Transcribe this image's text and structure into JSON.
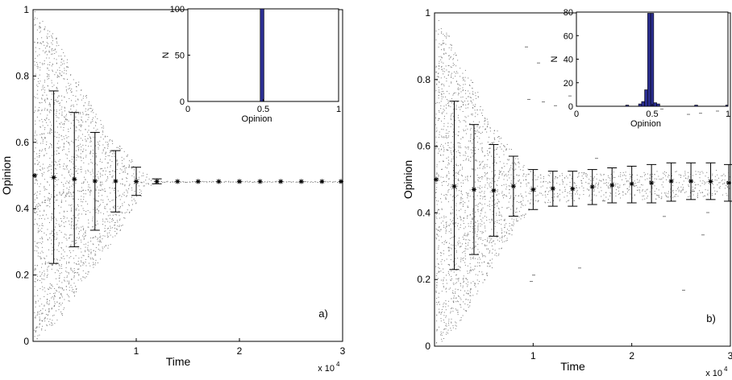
{
  "colors": {
    "axis": "#000000",
    "scatter": "#7a7a7a",
    "bar": "#2b2e91",
    "mean_marker": "#000000"
  },
  "chart_data": [
    {
      "type": "scatter",
      "xlabel": "Time",
      "ylabel": "Opinion",
      "x_multiplier_label": "x 10",
      "x_multiplier_exp": "4",
      "panel_label": "a)",
      "xlim": [
        0,
        3
      ],
      "ylim": [
        0,
        1
      ],
      "x_ticks": [
        1,
        2,
        3
      ],
      "y_ticks": [
        0,
        0.2,
        0.4,
        0.6,
        0.8,
        1
      ],
      "x_tick_labels": [
        "1",
        "2",
        "3"
      ],
      "y_tick_labels": [
        "0",
        "0.2",
        "0.4",
        "0.6",
        "0.8",
        "1"
      ],
      "grid": false,
      "mean_with_errorbars": {
        "x": [
          0.0,
          0.2,
          0.4,
          0.6,
          0.8,
          1.0,
          1.2,
          1.4,
          1.6,
          1.8,
          2.0,
          2.2,
          2.4,
          2.6,
          2.8,
          3.0
        ],
        "mean": [
          0.5,
          0.494,
          0.489,
          0.483,
          0.483,
          0.482,
          0.482,
          0.482,
          0.482,
          0.482,
          0.482,
          0.482,
          0.482,
          0.482,
          0.482,
          0.482
        ],
        "lower": [
          null,
          0.235,
          0.285,
          0.335,
          0.39,
          0.44,
          0.475,
          null,
          null,
          null,
          null,
          null,
          null,
          null,
          null,
          null
        ],
        "upper": [
          null,
          0.755,
          0.69,
          0.63,
          0.575,
          0.525,
          0.49,
          null,
          null,
          null,
          null,
          null,
          null,
          null,
          null,
          null
        ]
      },
      "opinion_spread": {
        "x": [
          0.0,
          0.2,
          0.4,
          0.6,
          0.8,
          1.0,
          1.1,
          1.2,
          3.0
        ],
        "min": [
          0.0,
          0.05,
          0.14,
          0.23,
          0.32,
          0.42,
          0.465,
          0.48,
          0.48
        ],
        "max": [
          1.0,
          0.93,
          0.8,
          0.685,
          0.6,
          0.535,
          0.5,
          0.484,
          0.484
        ]
      },
      "inset": {
        "type": "bar",
        "xlabel": "Opinion",
        "ylabel": "N",
        "xlim": [
          0,
          1
        ],
        "ylim": [
          0,
          100
        ],
        "x_ticks": [
          0,
          0.5,
          1
        ],
        "y_ticks": [
          0,
          50,
          100
        ],
        "x_tick_labels": [
          "0",
          "0.5",
          "1"
        ],
        "y_tick_labels": [
          "0",
          "50",
          "100"
        ],
        "bars": [
          {
            "x": 0.48,
            "width": 0.025,
            "value": 100
          }
        ]
      }
    },
    {
      "type": "scatter",
      "xlabel": "Time",
      "ylabel": "Opinion",
      "x_multiplier_label": "x 10",
      "x_multiplier_exp": "4",
      "panel_label": "b)",
      "xlim": [
        0,
        3
      ],
      "ylim": [
        0,
        1
      ],
      "x_ticks": [
        1,
        2,
        3
      ],
      "y_ticks": [
        0,
        0.2,
        0.4,
        0.6,
        0.8,
        1
      ],
      "x_tick_labels": [
        "1",
        "2",
        "3"
      ],
      "y_tick_labels": [
        "0",
        "0.2",
        "0.4",
        "0.6",
        "0.8",
        "1"
      ],
      "grid": false,
      "mean_with_errorbars": {
        "x": [
          0.0,
          0.2,
          0.4,
          0.6,
          0.8,
          1.0,
          1.2,
          1.4,
          1.6,
          1.8,
          2.0,
          2.2,
          2.4,
          2.6,
          2.8,
          3.0
        ],
        "mean": [
          0.5,
          0.48,
          0.47,
          0.467,
          0.48,
          0.47,
          0.473,
          0.472,
          0.478,
          0.483,
          0.487,
          0.49,
          0.495,
          0.495,
          0.494,
          0.49
        ],
        "lower": [
          null,
          0.23,
          0.275,
          0.33,
          0.39,
          0.41,
          0.42,
          0.42,
          0.425,
          0.43,
          0.43,
          0.43,
          0.435,
          0.44,
          0.44,
          0.435
        ],
        "upper": [
          null,
          0.735,
          0.665,
          0.605,
          0.57,
          0.53,
          0.525,
          0.525,
          0.53,
          0.535,
          0.54,
          0.545,
          0.55,
          0.55,
          0.55,
          0.545
        ]
      },
      "opinion_spread": {
        "x": [
          0.0,
          0.2,
          0.4,
          0.6,
          0.8,
          1.0,
          3.0
        ],
        "min": [
          0.0,
          0.05,
          0.14,
          0.25,
          0.35,
          0.43,
          0.45
        ],
        "max": [
          1.0,
          0.9,
          0.78,
          0.66,
          0.58,
          0.52,
          0.53
        ]
      },
      "inset": {
        "type": "bar",
        "xlabel": "Opinion",
        "ylabel": "N",
        "xlim": [
          0,
          1
        ],
        "ylim": [
          0,
          80
        ],
        "x_ticks": [
          0,
          0.5,
          1
        ],
        "y_ticks": [
          0,
          20,
          40,
          60,
          80
        ],
        "x_tick_labels": [
          "0",
          "0.5",
          "1"
        ],
        "y_tick_labels": [
          "0",
          "20",
          "40",
          "60",
          "80"
        ],
        "bars": [
          {
            "x": 0.325,
            "width": 0.02,
            "value": 1
          },
          {
            "x": 0.41,
            "width": 0.02,
            "value": 2
          },
          {
            "x": 0.43,
            "width": 0.02,
            "value": 4
          },
          {
            "x": 0.45,
            "width": 0.02,
            "value": 14
          },
          {
            "x": 0.47,
            "width": 0.02,
            "value": 79
          },
          {
            "x": 0.49,
            "width": 0.02,
            "value": 79
          },
          {
            "x": 0.51,
            "width": 0.02,
            "value": 3
          },
          {
            "x": 0.53,
            "width": 0.02,
            "value": 2
          },
          {
            "x": 0.78,
            "width": 0.02,
            "value": 1
          },
          {
            "x": 0.985,
            "width": 0.015,
            "value": 1
          }
        ]
      }
    }
  ]
}
